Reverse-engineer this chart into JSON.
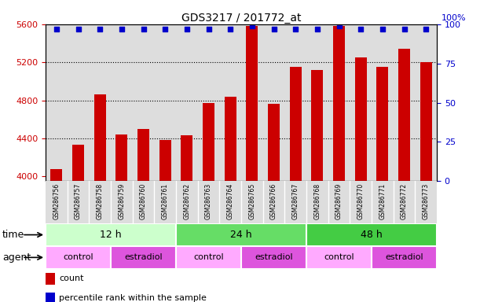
{
  "title": "GDS3217 / 201772_at",
  "samples": [
    "GSM286756",
    "GSM286757",
    "GSM286758",
    "GSM286759",
    "GSM286760",
    "GSM286761",
    "GSM286762",
    "GSM286763",
    "GSM286764",
    "GSM286765",
    "GSM286766",
    "GSM286767",
    "GSM286768",
    "GSM286769",
    "GSM286770",
    "GSM286771",
    "GSM286772",
    "GSM286773"
  ],
  "counts": [
    4080,
    4330,
    4860,
    4440,
    4500,
    4380,
    4430,
    4770,
    4840,
    5580,
    4760,
    5150,
    5120,
    5580,
    5250,
    5150,
    5340,
    5200
  ],
  "percentiles": [
    97,
    97,
    97,
    97,
    97,
    97,
    97,
    97,
    97,
    99,
    97,
    97,
    97,
    99,
    97,
    97,
    97,
    97
  ],
  "ymin": 3950,
  "ymax": 5600,
  "yticks_left": [
    4000,
    4400,
    4800,
    5200,
    5600
  ],
  "yticks_right": [
    0,
    25,
    50,
    75,
    100
  ],
  "bar_color": "#cc0000",
  "dot_color": "#0000cc",
  "time_groups": [
    {
      "label": "12 h",
      "start": 0,
      "end": 6,
      "color": "#ccffcc"
    },
    {
      "label": "24 h",
      "start": 6,
      "end": 12,
      "color": "#66dd66"
    },
    {
      "label": "48 h",
      "start": 12,
      "end": 18,
      "color": "#44cc44"
    }
  ],
  "agent_groups": [
    {
      "label": "control",
      "start": 0,
      "end": 3,
      "color": "#ffaaff"
    },
    {
      "label": "estradiol",
      "start": 3,
      "end": 6,
      "color": "#dd55dd"
    },
    {
      "label": "control",
      "start": 6,
      "end": 9,
      "color": "#ffaaff"
    },
    {
      "label": "estradiol",
      "start": 9,
      "end": 12,
      "color": "#dd55dd"
    },
    {
      "label": "control",
      "start": 12,
      "end": 15,
      "color": "#ffaaff"
    },
    {
      "label": "estradiol",
      "start": 15,
      "end": 18,
      "color": "#dd55dd"
    }
  ],
  "legend_count_label": "count",
  "legend_pct_label": "percentile rank within the sample",
  "xlabel_time": "time",
  "xlabel_agent": "agent",
  "col_bg_color": "#dddddd",
  "col_bg_alpha": 1.0
}
